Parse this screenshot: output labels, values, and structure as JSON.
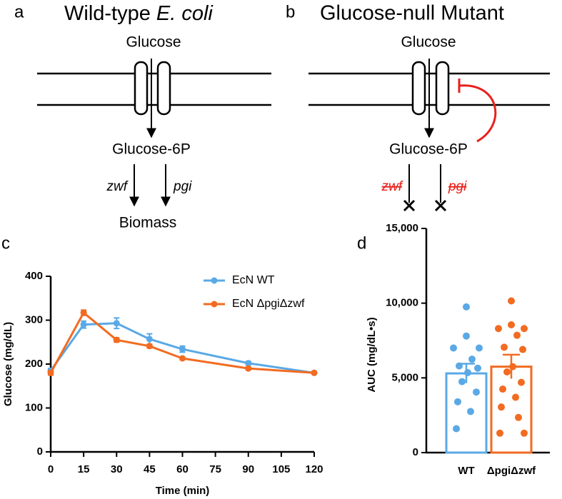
{
  "panels": {
    "a": {
      "label": "a",
      "title": "Wild-type",
      "title_italic": "E. coli",
      "glucose": "Glucose",
      "g6p": "Glucose-6P",
      "zwf": "zwf",
      "pgi": "pgi",
      "product": "Biomass"
    },
    "b": {
      "label": "b",
      "title": "Glucose-null Mutant",
      "glucose": "Glucose",
      "g6p": "Glucose-6P",
      "zwf": "zwf",
      "pgi": "pgi"
    }
  },
  "chart_data": [
    {
      "type": "line",
      "panel": "c",
      "x": [
        0,
        15,
        30,
        45,
        60,
        90,
        120
      ],
      "xlim": [
        0,
        120
      ],
      "xticks": [
        0,
        15,
        30,
        45,
        60,
        75,
        90,
        105,
        120
      ],
      "ylim": [
        0,
        400
      ],
      "yticks": [
        0,
        100,
        200,
        300,
        400
      ],
      "xlabel": "Time (min)",
      "ylabel": "Glucose (mg/dL)",
      "series": [
        {
          "name": "EcN WT",
          "color": "#5aa9e6",
          "values": [
            185,
            290,
            293,
            257,
            234,
            202,
            180
          ],
          "errors": [
            5,
            8,
            12,
            12,
            7,
            4,
            3
          ]
        },
        {
          "name": "EcN ΔpgiΔzwf",
          "color": "#f26b21",
          "values": [
            180,
            317,
            255,
            241,
            213,
            190,
            180
          ],
          "errors": [
            5,
            6,
            5,
            4,
            3,
            3,
            2
          ]
        }
      ]
    },
    {
      "type": "bar",
      "panel": "d",
      "categories": [
        "WT",
        "ΔpgiΔzwf"
      ],
      "ylim": [
        0,
        15000
      ],
      "yticks": [
        0,
        {
          "value": 5000,
          "label": "5,000"
        },
        {
          "value": 10000,
          "label": "10,000"
        },
        {
          "value": 15000,
          "label": "15,000"
        }
      ],
      "ylabel": "AUC (mg/dL•s)",
      "series": [
        {
          "name": "WT",
          "color": "#5aa9e6",
          "value": 5300,
          "error": 650,
          "points": [
            9750,
            7800,
            7000,
            7000,
            6250,
            5800,
            5650,
            5350,
            4750,
            4050,
            3400,
            2750,
            1600
          ]
        },
        {
          "name": "ΔpgiΔzwf",
          "color": "#f26b21",
          "value": 5750,
          "error": 800,
          "points": [
            10150,
            8550,
            8300,
            8300,
            7850,
            7050,
            6900,
            5750,
            5400,
            4700,
            4250,
            3700,
            3050,
            2350,
            1300,
            1300
          ]
        }
      ]
    }
  ]
}
